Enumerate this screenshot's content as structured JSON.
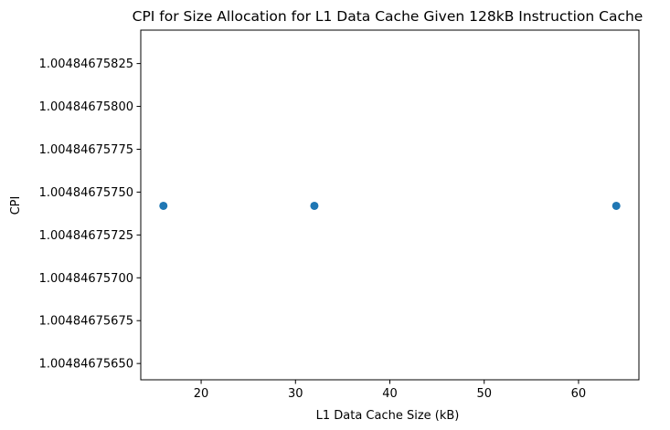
{
  "chart_data": {
    "type": "scatter",
    "title": "CPI for Size Allocation for L1 Data Cache Given 128kB Instruction Cache",
    "xlabel": "L1 Data Cache Size (kB)",
    "ylabel": "CPI",
    "x_ticks": [
      20,
      30,
      40,
      50,
      60
    ],
    "y_ticks": [
      "1.00484675650",
      "1.00484675675",
      "1.00484675700",
      "1.00484675725",
      "1.00484675750",
      "1.00484675775",
      "1.00484675800",
      "1.00484675825"
    ],
    "xlim": [
      13.6,
      66.4
    ],
    "ylim": [
      1.004846756405,
      1.004846758445
    ],
    "grid": false,
    "point_color": "#1f77b4",
    "series": [
      {
        "x": [
          16,
          32,
          64
        ],
        "y": [
          1.00484675742,
          1.00484675742,
          1.00484675742
        ]
      }
    ]
  }
}
